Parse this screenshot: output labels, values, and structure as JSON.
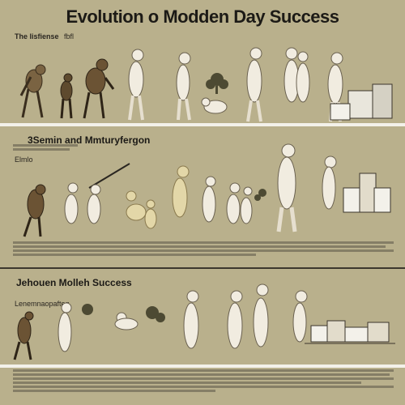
{
  "title": "Evolution o Modden Day Success",
  "panels": [
    {
      "label": "The lisfiense",
      "label_suffix": "fbfl"
    },
    {
      "label": "3Semin and Mmturyfergon",
      "side_note": "Elmlo"
    },
    {
      "label": "Jehouen Molleh Success",
      "side_note": "Lenemnaopafteg"
    }
  ],
  "colors": {
    "background": "#b9b08c",
    "figure_light": "#f1ece0",
    "figure_dark": "#6b5334",
    "figure_tan": "#e3d7a8",
    "ink": "#2a2620",
    "divider": "#f3f1ea"
  },
  "icons": [
    "ape-figure",
    "hominid-figure",
    "human-figure",
    "tree-icon",
    "building-icon",
    "spear-icon"
  ]
}
